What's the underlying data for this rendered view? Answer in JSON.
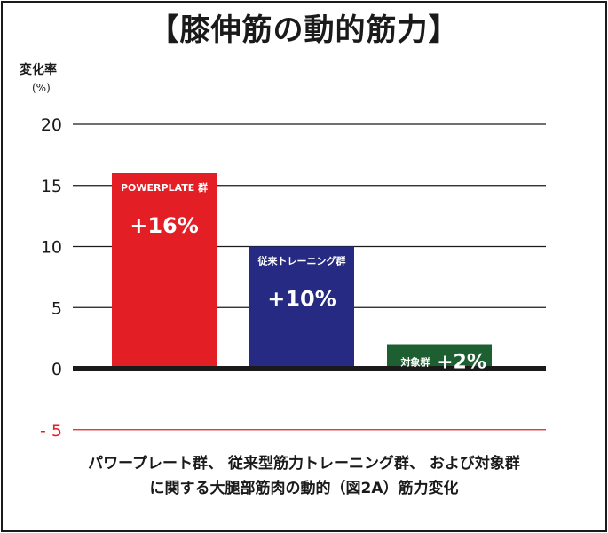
{
  "chart_data": {
    "type": "bar",
    "title": "【膝伸筋の動的筋力】",
    "ylabel": "変化率",
    "yunit": "(%)",
    "ylim": [
      -5,
      20
    ],
    "yticks": [
      20,
      15,
      10,
      5,
      0,
      -5
    ],
    "ytick_labels": [
      "20",
      "15",
      "10",
      "5",
      "0",
      "- 5"
    ],
    "grid": true,
    "categories": [
      "POWERPLATE 群",
      "従来トレーニング群",
      "対象群"
    ],
    "values": [
      16,
      10,
      2
    ],
    "data_labels": [
      "+16%",
      "+10%",
      "+2%"
    ],
    "colors": [
      "#e31e24",
      "#262a82",
      "#1e5f32"
    ],
    "caption": [
      "パワープレート群、 従来型筋力トレーニング群、 および対象群",
      "に関する大腿部筋肉の動的（図2A）筋力変化"
    ]
  }
}
